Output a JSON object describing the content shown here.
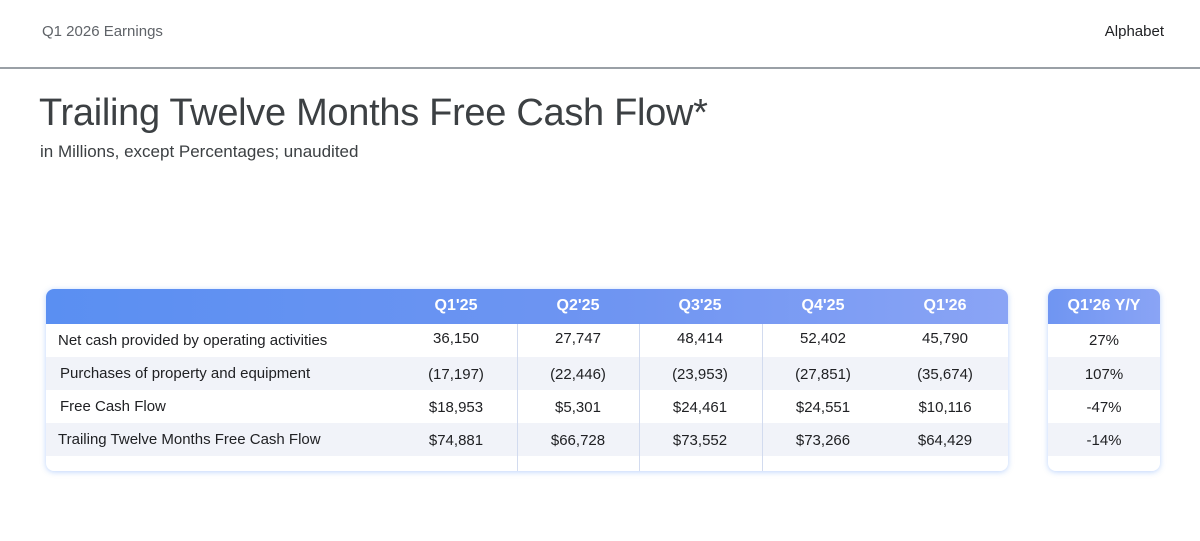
{
  "header": {
    "left_text": "Q1 2026 Earnings",
    "brand": "Alphabet"
  },
  "page": {
    "title": "Trailing Twelve Months Free Cash Flow*",
    "subtitle": "in Millions, except Percentages; unaudited"
  },
  "table": {
    "columns": [
      "Q1'25",
      "Q2'25",
      "Q3'25",
      "Q4'25",
      "Q1'26"
    ],
    "rows": [
      {
        "label": "Net cash provided by operating activities",
        "values": [
          "36,150",
          "27,747",
          "48,414",
          "52,402",
          "45,790"
        ]
      },
      {
        "label": "Purchases of property and equipment",
        "values": [
          "(17,197)",
          "(22,446)",
          "(23,953)",
          "(27,851)",
          "(35,674)"
        ]
      },
      {
        "label": "Free Cash Flow",
        "values": [
          "$18,953",
          "$5,301",
          "$24,461",
          "$24,551",
          "$10,116"
        ]
      },
      {
        "label": "Trailing Twelve Months Free Cash Flow",
        "values": [
          "$74,881",
          "$66,728",
          "$73,552",
          "$73,266",
          "$64,429"
        ]
      }
    ]
  },
  "yoy": {
    "header": "Q1'26 Y/Y",
    "values": [
      "27%",
      "107%",
      "-47%",
      "-14%"
    ]
  }
}
